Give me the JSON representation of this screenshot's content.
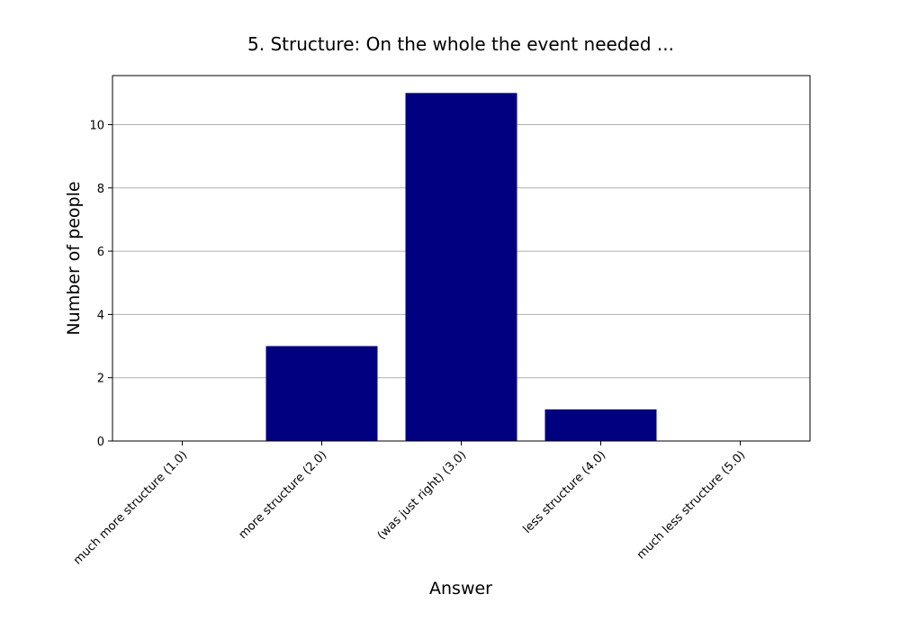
{
  "chart_data": {
    "type": "bar",
    "title": "5. Structure: On the whole the event needed ...",
    "xlabel": "Answer",
    "ylabel": "Number of people",
    "categories": [
      "much more structure (1.0)",
      "more structure (2.0)",
      "(was just right) (3.0)",
      "less structure (4.0)",
      "much less structure (5.0)"
    ],
    "values": [
      0,
      3,
      11,
      1,
      0
    ],
    "ylim": [
      0,
      11.55
    ],
    "yticks": [
      "0",
      "2",
      "4",
      "6",
      "8",
      "10"
    ],
    "grid": "y",
    "bar_color": "#000080"
  }
}
